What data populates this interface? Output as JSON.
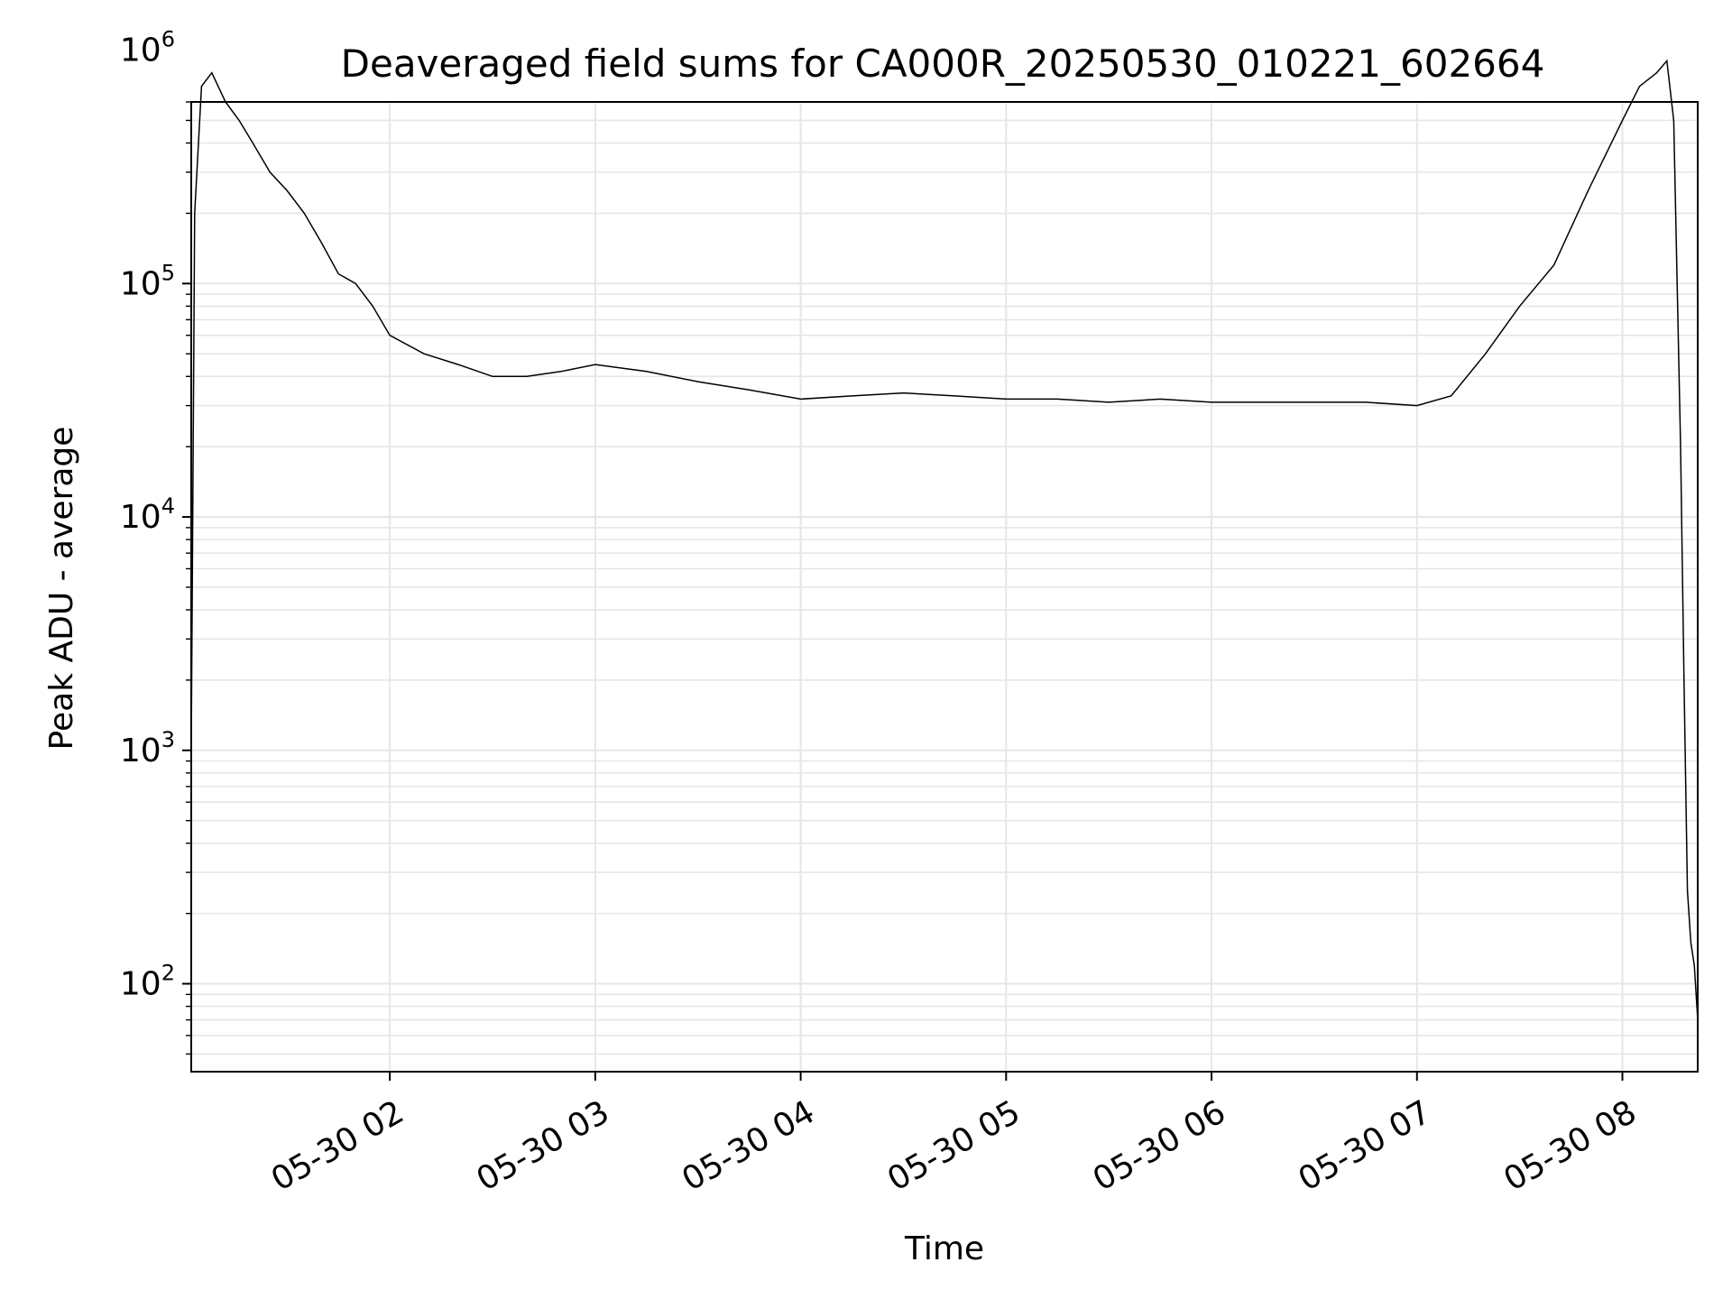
{
  "chart_data": {
    "type": "line",
    "title": "Deaveraged field sums for CA000R_20250530_010221_602664",
    "xlabel": "Time",
    "ylabel": "Peak ADU - average",
    "yscale": "log",
    "ylim": [
      42,
      600000
    ],
    "xlim": [
      "2025-05-30 01:02",
      "2025-05-30 08:22"
    ],
    "grid": true,
    "line_color": "#000000",
    "grid_color": "#e6e6e6",
    "x_ticks": [
      {
        "value": "2025-05-30 02:00",
        "label": "05-30 02"
      },
      {
        "value": "2025-05-30 03:00",
        "label": "05-30 03"
      },
      {
        "value": "2025-05-30 04:00",
        "label": "05-30 04"
      },
      {
        "value": "2025-05-30 05:00",
        "label": "05-30 05"
      },
      {
        "value": "2025-05-30 06:00",
        "label": "05-30 06"
      },
      {
        "value": "2025-05-30 07:00",
        "label": "05-30 07"
      },
      {
        "value": "2025-05-30 08:00",
        "label": "05-30 08"
      }
    ],
    "y_ticks": [
      {
        "value": 100,
        "base": "10",
        "exp": "2"
      },
      {
        "value": 1000,
        "base": "10",
        "exp": "3"
      },
      {
        "value": 10000,
        "base": "10",
        "exp": "4"
      },
      {
        "value": 100000,
        "base": "10",
        "exp": "5"
      },
      {
        "value": 1000000,
        "base": "10",
        "exp": "6"
      }
    ],
    "series": [
      {
        "x": [
          "2025-05-30 01:02",
          "2025-05-30 01:03",
          "2025-05-30 01:05",
          "2025-05-30 01:08",
          "2025-05-30 01:12",
          "2025-05-30 01:16",
          "2025-05-30 01:20",
          "2025-05-30 01:25",
          "2025-05-30 01:30",
          "2025-05-30 01:35",
          "2025-05-30 01:40",
          "2025-05-30 01:45",
          "2025-05-30 01:50",
          "2025-05-30 01:55",
          "2025-05-30 02:00",
          "2025-05-30 02:10",
          "2025-05-30 02:20",
          "2025-05-30 02:30",
          "2025-05-30 02:40",
          "2025-05-30 02:50",
          "2025-05-30 03:00",
          "2025-05-30 03:15",
          "2025-05-30 03:30",
          "2025-05-30 03:45",
          "2025-05-30 04:00",
          "2025-05-30 04:15",
          "2025-05-30 04:30",
          "2025-05-30 04:45",
          "2025-05-30 05:00",
          "2025-05-30 05:15",
          "2025-05-30 05:30",
          "2025-05-30 05:45",
          "2025-05-30 06:00",
          "2025-05-30 06:15",
          "2025-05-30 06:30",
          "2025-05-30 06:45",
          "2025-05-30 07:00",
          "2025-05-30 07:10",
          "2025-05-30 07:20",
          "2025-05-30 07:30",
          "2025-05-30 07:40",
          "2025-05-30 07:50",
          "2025-05-30 08:00",
          "2025-05-30 08:05",
          "2025-05-30 08:10",
          "2025-05-30 08:13",
          "2025-05-30 08:15",
          "2025-05-30 08:16",
          "2025-05-30 08:17",
          "2025-05-30 08:18",
          "2025-05-30 08:19",
          "2025-05-30 08:20",
          "2025-05-30 08:21",
          "2025-05-30 08:22"
        ],
        "y": [
          1000,
          200000,
          700000,
          800000,
          600000,
          500000,
          400000,
          300000,
          250000,
          200000,
          150000,
          110000,
          100000,
          80000,
          60000,
          50000,
          45000,
          40000,
          40000,
          42000,
          45000,
          42000,
          38000,
          35000,
          32000,
          33000,
          34000,
          33000,
          32000,
          32000,
          31000,
          32000,
          31000,
          31000,
          31000,
          31000,
          30000,
          33000,
          50000,
          80000,
          120000,
          250000,
          500000,
          700000,
          800000,
          900000,
          500000,
          100000,
          20000,
          2000,
          250,
          150,
          120,
          70
        ]
      }
    ]
  }
}
